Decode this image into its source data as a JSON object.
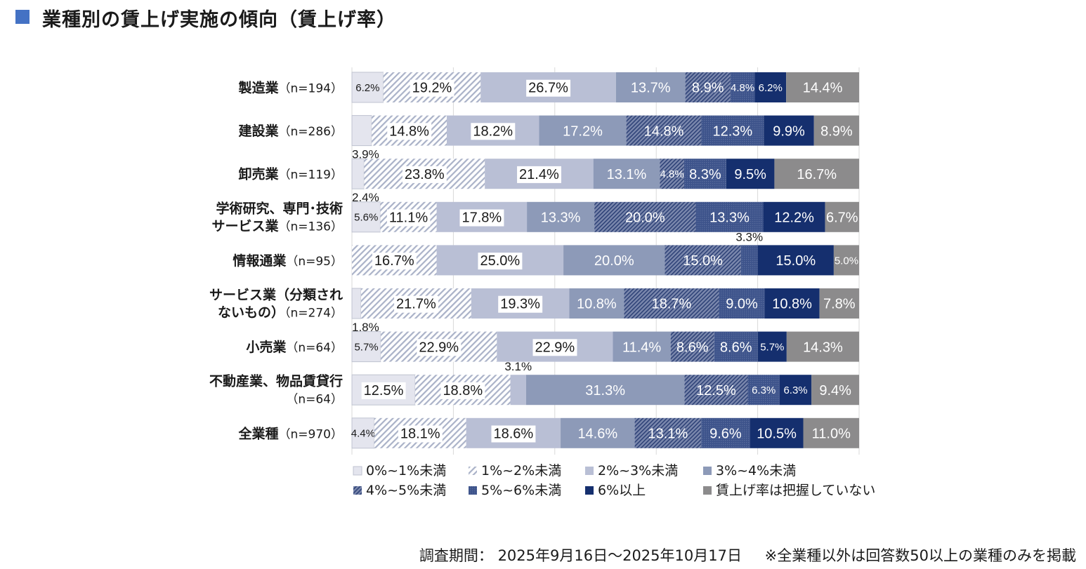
{
  "title": "業種別の賃上げ実施の傾向（賃上げ率）",
  "colors": {
    "title_marker": "#4472c4",
    "c0": "#e4e5ee",
    "c1": "#d3d8e4",
    "c2": "#b9bfd5",
    "c3": "#8d9ab8",
    "c4": "#58699a",
    "c5": "#3d538b",
    "c6": "#152f6e",
    "c7": "#8c8b8c"
  },
  "chart_data": {
    "type": "bar",
    "orientation": "horizontal",
    "stacked": "100%",
    "categories": [
      {
        "name": "製造業",
        "n": "（n=194）"
      },
      {
        "name": "建設業",
        "n": "（n=286）"
      },
      {
        "name": "卸売業",
        "n": "（n=119）"
      },
      {
        "name": "学術研究、専門･技術",
        "name2": "サービス業",
        "n": "（n=136）"
      },
      {
        "name": "情報通業",
        "n": "（n=95）"
      },
      {
        "name": "サービス業（分類され",
        "name2": "ないもの）",
        "n": "（n=274）"
      },
      {
        "name": "小売業",
        "n": "（n=64）"
      },
      {
        "name": "不動産業、物品賃貸行",
        "n": "（n=64）"
      },
      {
        "name": "全業種",
        "n": "（n=970）"
      }
    ],
    "series": [
      {
        "name": "0%~1%未満",
        "color_key": "c0",
        "pattern": "none",
        "values": [
          6.2,
          3.9,
          2.4,
          5.6,
          0,
          1.8,
          5.7,
          12.5,
          4.4
        ],
        "labels": [
          "6.2%",
          "3.9%",
          "2.4%",
          "5.6%",
          "",
          "1.8%",
          "5.7%",
          "12.5%",
          "4.4%"
        ]
      },
      {
        "name": "1%~2%未満",
        "color_key": "c1",
        "pattern": "light-diagonal",
        "values": [
          19.2,
          14.8,
          23.8,
          11.1,
          16.7,
          21.7,
          22.9,
          18.8,
          18.1
        ],
        "labels": [
          "19.2%",
          "14.8%",
          "23.8%",
          "11.1%",
          "16.7%",
          "21.7%",
          "22.9%",
          "18.8%",
          "18.1%"
        ]
      },
      {
        "name": "2%~3%未満",
        "color_key": "c2",
        "pattern": "none",
        "values": [
          26.7,
          18.2,
          21.4,
          17.8,
          25.0,
          19.3,
          22.9,
          3.1,
          18.6
        ],
        "labels": [
          "26.7%",
          "18.2%",
          "21.4%",
          "17.8%",
          "25.0%",
          "19.3%",
          "22.9%",
          "3.1%",
          "18.6%"
        ]
      },
      {
        "name": "3%~4%未満",
        "color_key": "c3",
        "pattern": "none",
        "values": [
          13.7,
          17.2,
          13.1,
          13.3,
          20.0,
          10.8,
          11.4,
          31.3,
          14.6
        ],
        "labels": [
          "13.7%",
          "17.2%",
          "13.1%",
          "13.3%",
          "20.0%",
          "10.8%",
          "11.4%",
          "31.3%",
          "14.6%"
        ]
      },
      {
        "name": "4%~5%未満",
        "color_key": "c4",
        "pattern": "dark-diagonal",
        "values": [
          8.9,
          14.8,
          4.8,
          20.0,
          15.0,
          18.7,
          8.6,
          12.5,
          13.1
        ],
        "labels": [
          "8.9%",
          "14.8%",
          "4.8%",
          "20.0%",
          "15.0%",
          "18.7%",
          "8.6%",
          "12.5%",
          "13.1%"
        ]
      },
      {
        "name": "5%~6%未満",
        "color_key": "c5",
        "pattern": "dense",
        "values": [
          4.8,
          12.3,
          8.3,
          13.3,
          3.3,
          9.0,
          8.6,
          6.3,
          9.6
        ],
        "labels": [
          "4.8%",
          "12.3%",
          "8.3%",
          "13.3%",
          "3.3%",
          "9.0%",
          "8.6%",
          "6.3%",
          "9.6%"
        ]
      },
      {
        "name": "6%以上",
        "color_key": "c6",
        "pattern": "none",
        "values": [
          6.2,
          9.9,
          9.5,
          12.2,
          15.0,
          10.8,
          5.7,
          6.3,
          10.5
        ],
        "labels": [
          "6.2%",
          "9.9%",
          "9.5%",
          "12.2%",
          "15.0%",
          "10.8%",
          "5.7%",
          "6.3%",
          "10.5%"
        ]
      },
      {
        "name": "賃上げ率は把握していない",
        "color_key": "c7",
        "pattern": "none",
        "values": [
          14.4,
          8.9,
          16.7,
          6.7,
          5.0,
          7.8,
          14.3,
          9.4,
          11.0
        ],
        "labels": [
          "14.4%",
          "8.9%",
          "16.7%",
          "6.7%",
          "5.0%",
          "7.8%",
          "14.3%",
          "9.4%",
          "11.0%"
        ]
      }
    ],
    "xlim": [
      0,
      100
    ],
    "grid": true,
    "legend": "bottom"
  },
  "footnote": {
    "period_label": "調査期間：",
    "period_value": "2025年9月16日～2025年10月17日",
    "note": "※全業種以外は回答数50以上の業種のみを掲載"
  }
}
